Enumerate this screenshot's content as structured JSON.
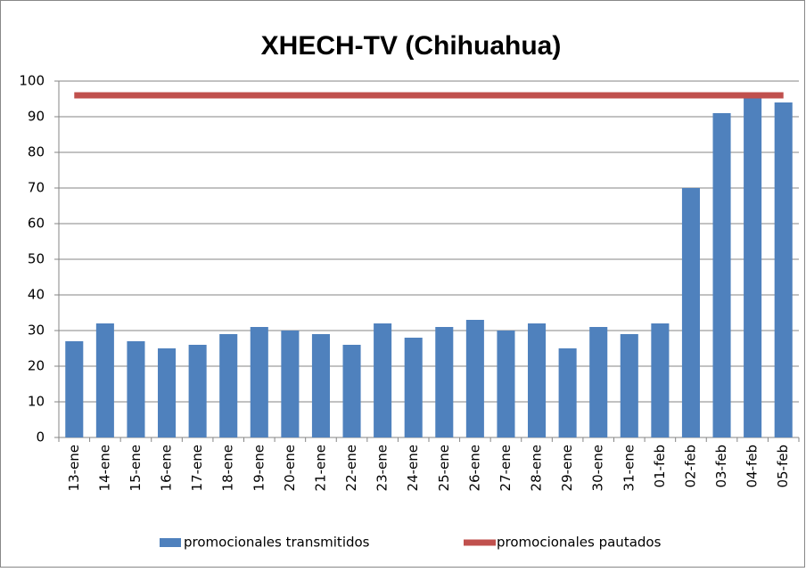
{
  "chart_data": {
    "type": "bar",
    "title": "XHECH-TV (Chihuahua)",
    "categories": [
      "13-ene",
      "14-ene",
      "15-ene",
      "16-ene",
      "17-ene",
      "18-ene",
      "19-ene",
      "20-ene",
      "21-ene",
      "22-ene",
      "23-ene",
      "24-ene",
      "25-ene",
      "26-ene",
      "27-ene",
      "28-ene",
      "29-ene",
      "30-ene",
      "31-ene",
      "01-feb",
      "02-feb",
      "03-feb",
      "04-feb",
      "05-feb"
    ],
    "series": [
      {
        "name": "promocionales transmitidos",
        "color": "#4f81bd",
        "type": "bar",
        "values": [
          27,
          32,
          27,
          25,
          26,
          29,
          31,
          30,
          29,
          26,
          32,
          28,
          31,
          33,
          30,
          32,
          25,
          31,
          29,
          32,
          70,
          91,
          96,
          94
        ]
      },
      {
        "name": "promocionales pautados",
        "color": "#c0504d",
        "type": "line",
        "values": [
          96,
          96,
          96,
          96,
          96,
          96,
          96,
          96,
          96,
          96,
          96,
          96,
          96,
          96,
          96,
          96,
          96,
          96,
          96,
          96,
          96,
          96,
          96,
          96
        ]
      }
    ],
    "ylim": [
      0,
      100
    ],
    "yticks": [
      0,
      10,
      20,
      30,
      40,
      50,
      60,
      70,
      80,
      90,
      100
    ],
    "grid": true,
    "legend": "bottom"
  }
}
